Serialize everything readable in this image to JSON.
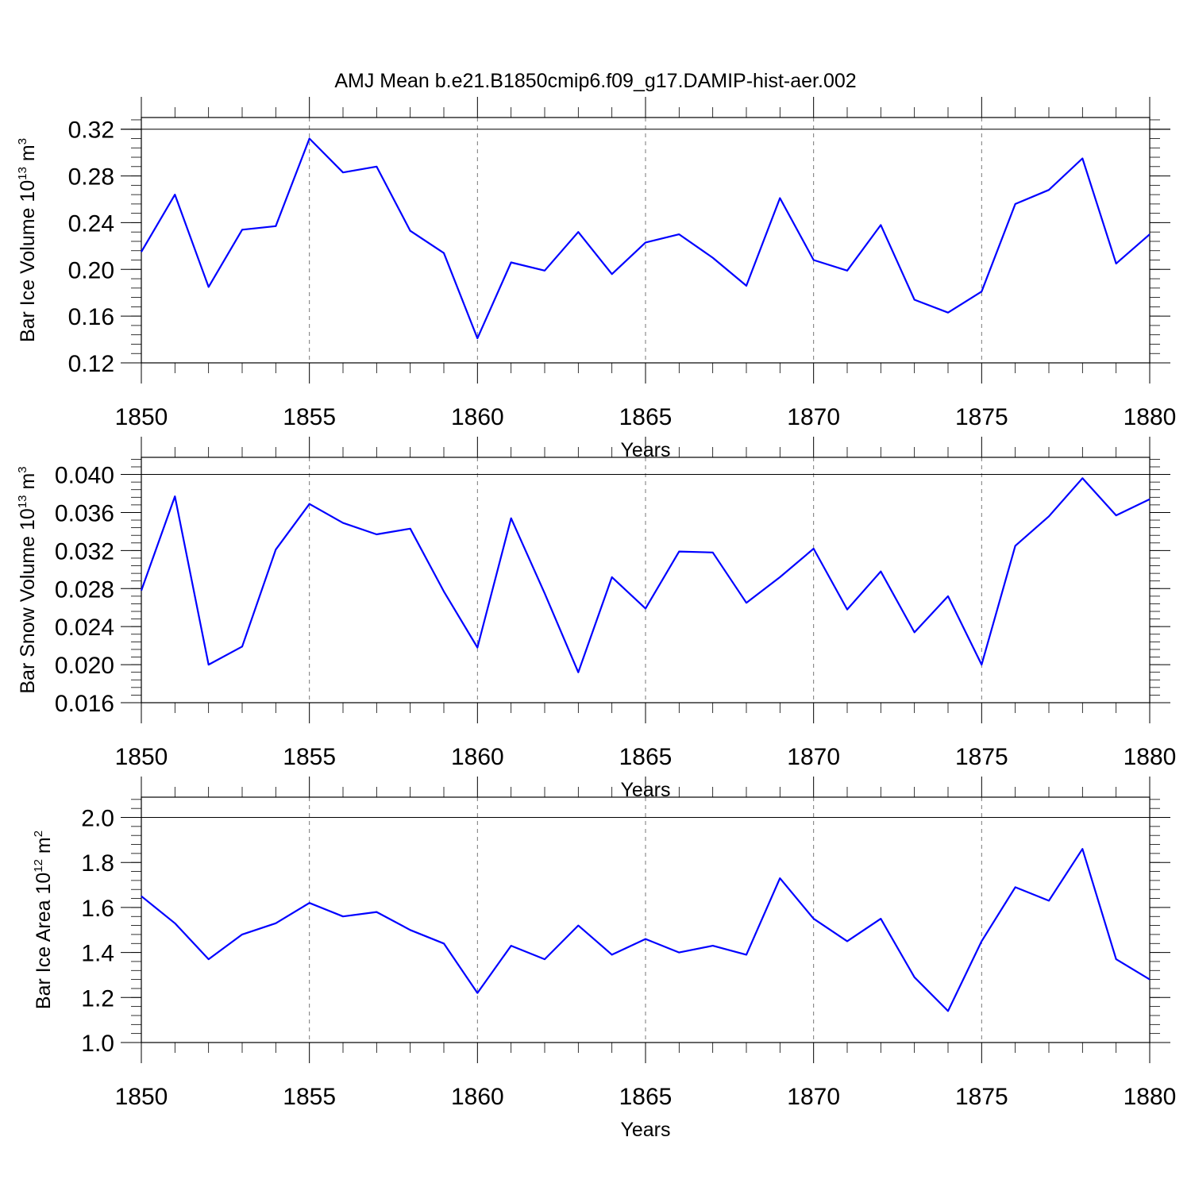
{
  "figure": {
    "title": "AMJ Mean b.e21.B1850cmip6.f09_g17.DAMIP-hist-aer.002",
    "line_color": "#0000ff"
  },
  "chart_data": [
    {
      "type": "line",
      "title": "",
      "xlabel": "Years",
      "ylabel": {
        "text": "Bar Ice Volume 10",
        "exp": "13",
        "unit": " m",
        "unit_exp": "3"
      },
      "xlim": [
        1850,
        1880
      ],
      "ylim": [
        0.12,
        0.33
      ],
      "yticks": [
        0.12,
        0.16,
        0.2,
        0.24,
        0.28,
        0.32
      ],
      "ytick_labels": [
        "0.12",
        "0.16",
        "0.20",
        "0.24",
        "0.28",
        "0.32"
      ],
      "ytick_minor_step": 0.008,
      "xticks": [
        1850,
        1855,
        1860,
        1865,
        1870,
        1875,
        1880
      ],
      "xtick_labels": [
        "1850",
        "1855",
        "1860",
        "1865",
        "1870",
        "1875",
        "1880"
      ],
      "grid": "dashed vertical at major x ticks",
      "series": [
        {
          "name": "Bar Ice Volume",
          "x": [
            1850,
            1851,
            1852,
            1853,
            1854,
            1855,
            1856,
            1857,
            1858,
            1859,
            1860,
            1861,
            1862,
            1863,
            1864,
            1865,
            1866,
            1867,
            1868,
            1869,
            1870,
            1871,
            1872,
            1873,
            1874,
            1875,
            1876,
            1877,
            1878,
            1879,
            1880
          ],
          "values": [
            0.215,
            0.264,
            0.185,
            0.234,
            0.237,
            0.312,
            0.283,
            0.288,
            0.233,
            0.214,
            0.141,
            0.206,
            0.199,
            0.232,
            0.196,
            0.223,
            0.23,
            0.21,
            0.186,
            0.261,
            0.208,
            0.199,
            0.238,
            0.174,
            0.163,
            0.181,
            0.256,
            0.268,
            0.295,
            0.205,
            0.23
          ]
        }
      ]
    },
    {
      "type": "line",
      "title": "",
      "xlabel": "Years",
      "ylabel": {
        "text": "Bar Snow Volume 10",
        "exp": "13",
        "unit": " m",
        "unit_exp": "3"
      },
      "xlim": [
        1850,
        1880
      ],
      "ylim": [
        0.016,
        0.0418
      ],
      "yticks": [
        0.016,
        0.02,
        0.024,
        0.028,
        0.032,
        0.036,
        0.04
      ],
      "ytick_labels": [
        "0.016",
        "0.020",
        "0.024",
        "0.028",
        "0.032",
        "0.036",
        "0.040"
      ],
      "ytick_minor_step": 0.0008,
      "xticks": [
        1850,
        1855,
        1860,
        1865,
        1870,
        1875,
        1880
      ],
      "xtick_labels": [
        "1850",
        "1855",
        "1860",
        "1865",
        "1870",
        "1875",
        "1880"
      ],
      "grid": "dashed vertical at major x ticks",
      "series": [
        {
          "name": "Bar Snow Volume",
          "x": [
            1850,
            1851,
            1852,
            1853,
            1854,
            1855,
            1856,
            1857,
            1858,
            1859,
            1860,
            1861,
            1862,
            1863,
            1864,
            1865,
            1866,
            1867,
            1868,
            1869,
            1870,
            1871,
            1872,
            1873,
            1874,
            1875,
            1876,
            1877,
            1878,
            1879,
            1880
          ],
          "values": [
            0.0278,
            0.0377,
            0.02,
            0.0219,
            0.0321,
            0.0369,
            0.0349,
            0.0337,
            0.0343,
            0.0277,
            0.0218,
            0.0354,
            0.0275,
            0.0192,
            0.0292,
            0.0259,
            0.0319,
            0.0318,
            0.0265,
            0.0292,
            0.0322,
            0.0258,
            0.0298,
            0.0234,
            0.0272,
            0.02,
            0.0325,
            0.0356,
            0.0396,
            0.0357,
            0.0374
          ]
        }
      ]
    },
    {
      "type": "line",
      "title": "",
      "xlabel": "Years",
      "ylabel": {
        "text": "Bar Ice Area 10",
        "exp": "12",
        "unit": " m",
        "unit_exp": "2"
      },
      "xlim": [
        1850,
        1880
      ],
      "ylim": [
        1.0,
        2.09
      ],
      "yticks": [
        1.0,
        1.2,
        1.4,
        1.6,
        1.8,
        2.0
      ],
      "ytick_labels": [
        "1.0",
        "1.2",
        "1.4",
        "1.6",
        "1.8",
        "2.0"
      ],
      "ytick_minor_step": 0.04,
      "xticks": [
        1850,
        1855,
        1860,
        1865,
        1870,
        1875,
        1880
      ],
      "xtick_labels": [
        "1850",
        "1855",
        "1860",
        "1865",
        "1870",
        "1875",
        "1880"
      ],
      "grid": "dashed vertical at major x ticks",
      "series": [
        {
          "name": "Bar Ice Area",
          "x": [
            1850,
            1851,
            1852,
            1853,
            1854,
            1855,
            1856,
            1857,
            1858,
            1859,
            1860,
            1861,
            1862,
            1863,
            1864,
            1865,
            1866,
            1867,
            1868,
            1869,
            1870,
            1871,
            1872,
            1873,
            1874,
            1875,
            1876,
            1877,
            1878,
            1879,
            1880
          ],
          "values": [
            1.65,
            1.53,
            1.37,
            1.48,
            1.53,
            1.62,
            1.56,
            1.58,
            1.5,
            1.44,
            1.22,
            1.43,
            1.37,
            1.52,
            1.39,
            1.46,
            1.4,
            1.43,
            1.39,
            1.73,
            1.55,
            1.45,
            1.55,
            1.29,
            1.14,
            1.45,
            1.69,
            1.63,
            1.86,
            1.37,
            1.28
          ]
        }
      ]
    }
  ]
}
